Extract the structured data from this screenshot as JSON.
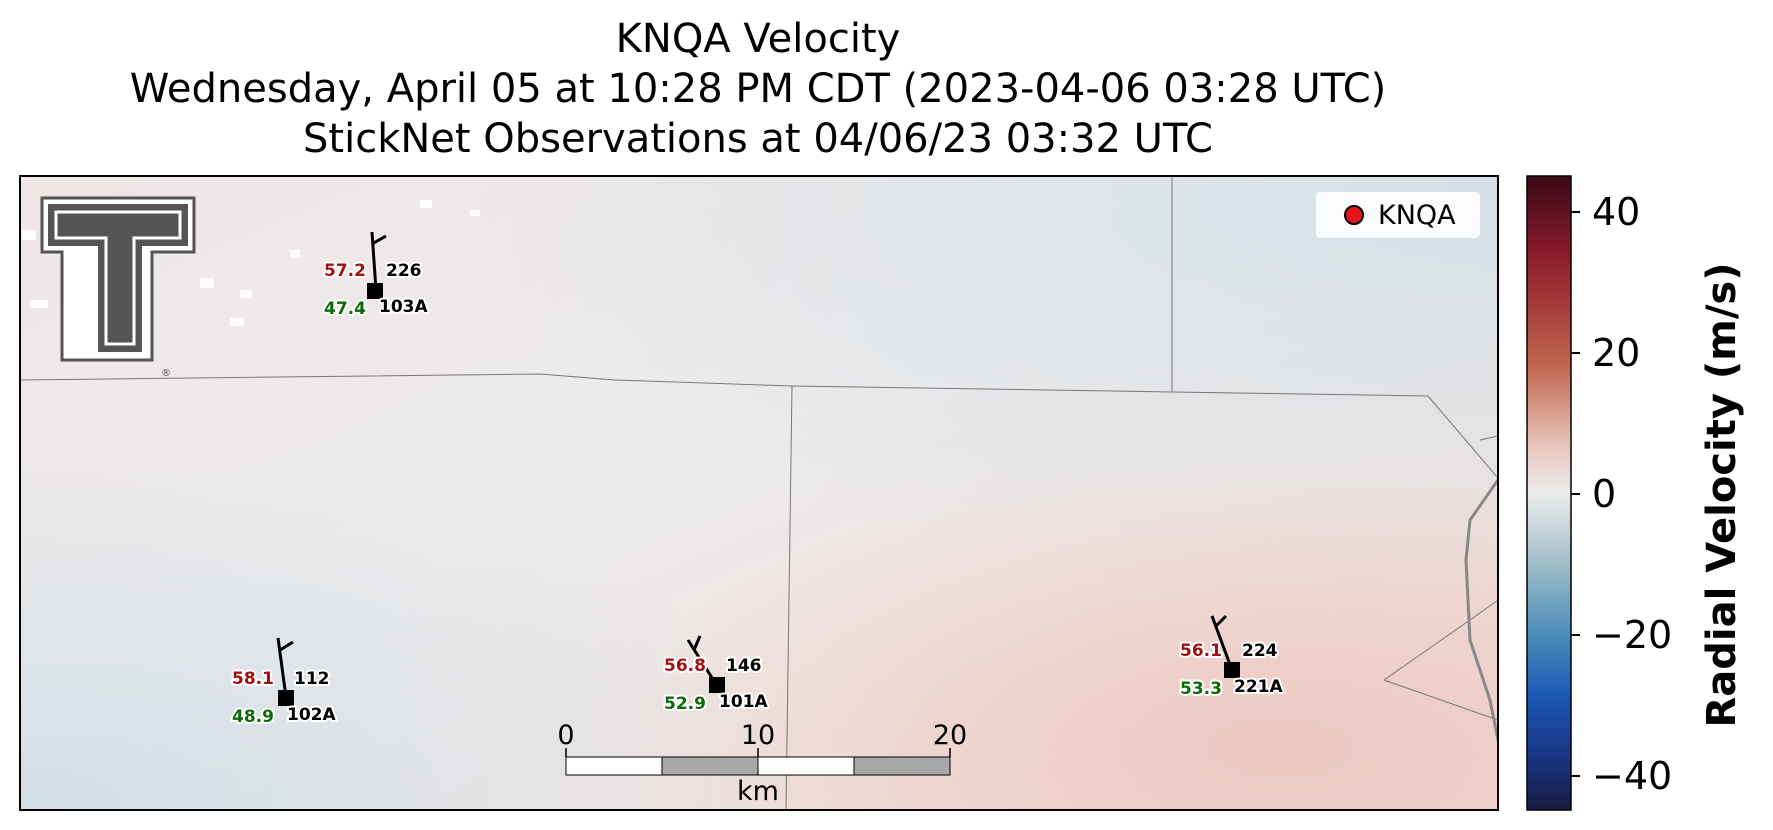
{
  "title": {
    "line1": "KNQA Velocity",
    "line2": "Wednesday, April 05 at 10:28 PM CDT (2023-04-06 03:28 UTC)",
    "line3": "StickNet Observations at 04/06/23 03:32 UTC"
  },
  "legend": {
    "label": "KNQA",
    "marker_color": "#e8141a"
  },
  "colorbar": {
    "label": "Radial Velocity (m/s)",
    "ticks": [
      "40",
      "20",
      "0",
      "−20",
      "−40"
    ],
    "range": [
      -45,
      45
    ],
    "colors": [
      "#f0e4e2",
      "#e6e8ea",
      "#dde4e8"
    ]
  },
  "scalebar": {
    "ticks": [
      "0",
      "10",
      "20"
    ],
    "unit": "km"
  },
  "stations": [
    {
      "id": "103A",
      "temp": "57.2",
      "dewpoint": "47.4",
      "pressure": "226"
    },
    {
      "id": "102A",
      "temp": "58.1",
      "dewpoint": "48.9",
      "pressure": "112"
    },
    {
      "id": "101A",
      "temp": "56.8",
      "dewpoint": "52.9",
      "pressure": "146"
    },
    {
      "id": "221A",
      "temp": "56.1",
      "dewpoint": "53.3",
      "pressure": "224"
    }
  ],
  "logo": {
    "text": "T",
    "color": "#555555"
  }
}
